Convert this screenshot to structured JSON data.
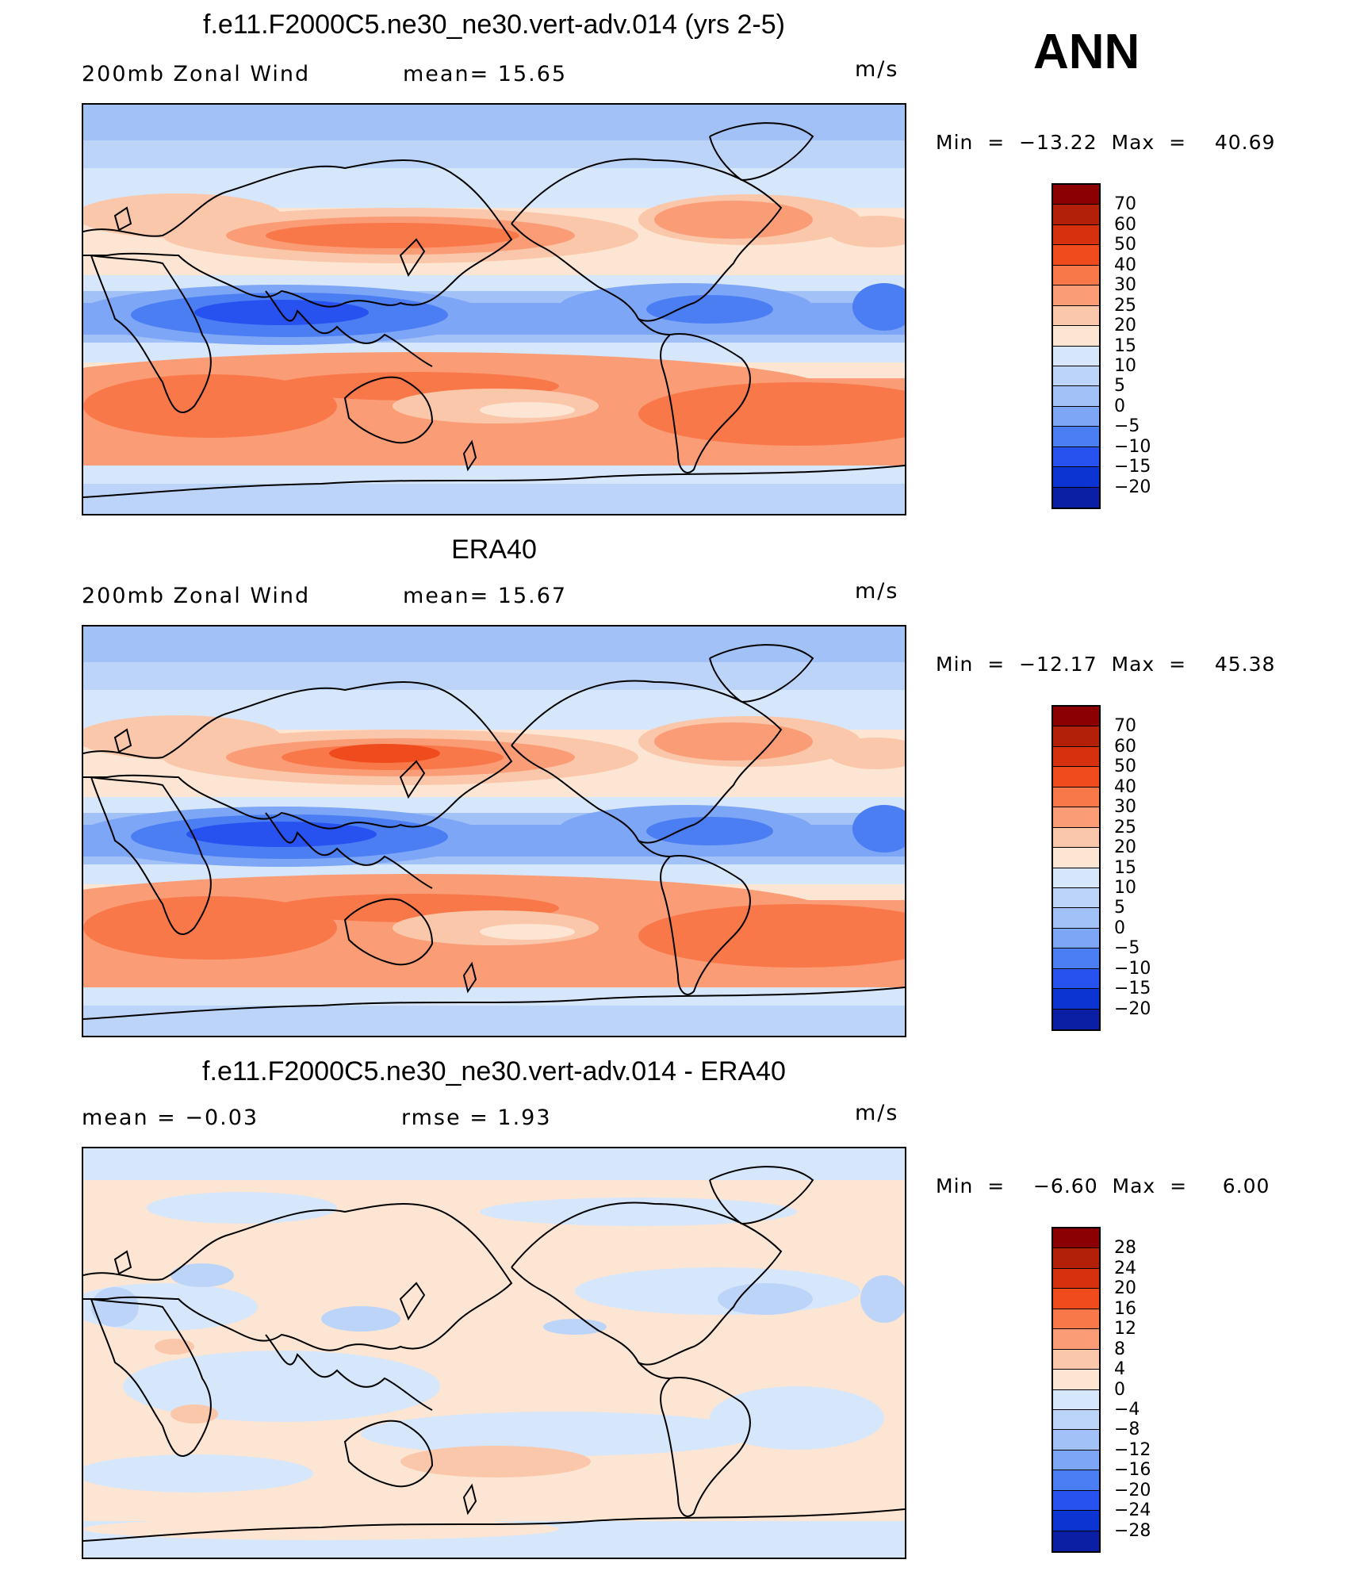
{
  "season": "ANN",
  "panels": [
    {
      "title": "f.e11.F2000C5.ne30_ne30.vert-adv.014 (yrs 2-5)",
      "left_label": "200mb  Zonal  Wind",
      "mid_label": "mean=   15.65",
      "units": "m/s",
      "minmax": "Min  =  −13.22  Max  =    40.69"
    },
    {
      "title": "ERA40",
      "left_label": "200mb  Zonal  Wind",
      "mid_label": "mean=   15.67",
      "units": "m/s",
      "minmax": "Min  =  −12.17  Max  =    45.38"
    },
    {
      "title": "f.e11.F2000C5.ne30_ne30.vert-adv.014 - ERA40",
      "left_label": "mean  =    −0.03",
      "mid_label": "rmse  =     1.93",
      "units": "m/s",
      "minmax": "Min  =    −6.60  Max  =     6.00"
    }
  ],
  "chart_data": [
    {
      "type": "heatmap",
      "title": "f.e11.F2000C5.ne30_ne30.vert-adv.014 (yrs 2-5)",
      "variable": "200mb Zonal Wind",
      "units": "m/s",
      "mean": 15.65,
      "min": -13.22,
      "max": 40.69,
      "colorbar_levels": [
        "70",
        "60",
        "50",
        "40",
        "30",
        "25",
        "20",
        "15",
        "10",
        "5",
        "0",
        "−5",
        "−10",
        "−15",
        "−20"
      ],
      "colorbar_colors": [
        "#8b0000",
        "#b3200a",
        "#d6310f",
        "#f04b1c",
        "#f9784a",
        "#fa9d77",
        "#fbc7aa",
        "#fde5d3",
        "#d6e6fb",
        "#bdd4f9",
        "#a1c1f7",
        "#7ea6f6",
        "#4c7ef3",
        "#2752ef",
        "#0b34d3",
        "#0a1fa3"
      ]
    },
    {
      "type": "heatmap",
      "title": "ERA40",
      "variable": "200mb Zonal Wind",
      "units": "m/s",
      "mean": 15.67,
      "min": -12.17,
      "max": 45.38,
      "colorbar_levels": [
        "70",
        "60",
        "50",
        "40",
        "30",
        "25",
        "20",
        "15",
        "10",
        "5",
        "0",
        "−5",
        "−10",
        "−15",
        "−20"
      ],
      "colorbar_colors": [
        "#8b0000",
        "#b3200a",
        "#d6310f",
        "#f04b1c",
        "#f9784a",
        "#fa9d77",
        "#fbc7aa",
        "#fde5d3",
        "#d6e6fb",
        "#bdd4f9",
        "#a1c1f7",
        "#7ea6f6",
        "#4c7ef3",
        "#2752ef",
        "#0b34d3",
        "#0a1fa3"
      ]
    },
    {
      "type": "heatmap",
      "title": "f.e11.F2000C5.ne30_ne30.vert-adv.014 - ERA40",
      "units": "m/s",
      "mean": -0.03,
      "rmse": 1.93,
      "min": -6.6,
      "max": 6.0,
      "colorbar_levels": [
        "28",
        "24",
        "20",
        "16",
        "12",
        "8",
        "4",
        "0",
        "−4",
        "−8",
        "−12",
        "−16",
        "−20",
        "−24",
        "−28"
      ],
      "colorbar_colors": [
        "#8b0000",
        "#b3200a",
        "#d6310f",
        "#f04b1c",
        "#f9784a",
        "#fa9d77",
        "#fbc7aa",
        "#fde5d3",
        "#d6e6fb",
        "#bdd4f9",
        "#a1c1f7",
        "#7ea6f6",
        "#4c7ef3",
        "#2752ef",
        "#0b34d3",
        "#0a1fa3"
      ]
    }
  ]
}
